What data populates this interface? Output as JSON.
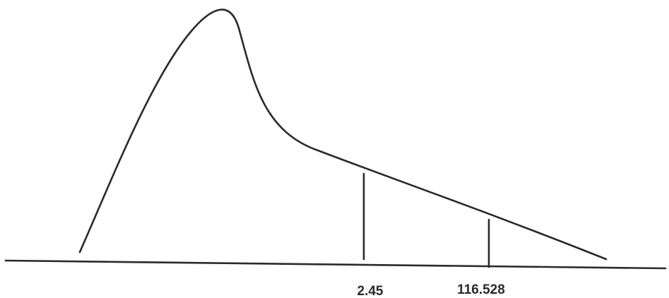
{
  "figure": {
    "shape": "right-skewed distribution curve",
    "line_color": "#2a2a2a",
    "background": "#ffffff"
  },
  "markers": [
    {
      "label": "2.45"
    },
    {
      "label": "116.528"
    }
  ]
}
